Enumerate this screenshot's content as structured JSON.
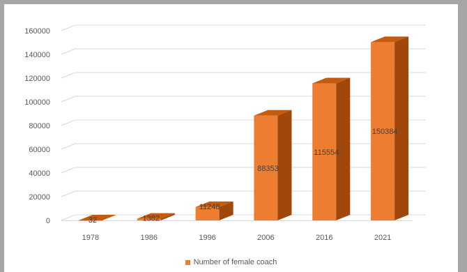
{
  "chart_data": {
    "type": "bar",
    "style": "3d-column",
    "categories": [
      "1978",
      "1986",
      "1996",
      "2006",
      "2016",
      "2021"
    ],
    "series": [
      {
        "name": "Number of female coach",
        "values": [
          32,
          1382,
          11248,
          88353,
          115554,
          150384
        ]
      }
    ],
    "ylim": [
      0,
      160000
    ],
    "yticks": [
      "0",
      "20000",
      "40000",
      "60000",
      "80000",
      "100000",
      "120000",
      "140000",
      "160000"
    ],
    "grid": true,
    "legend_position": "bottom",
    "data_labels": [
      "32",
      "1382",
      "11248",
      "88353",
      "115554",
      "150384"
    ],
    "colors": {
      "front": "#ed7d31",
      "top": "#c55a11",
      "side": "#a0470b"
    }
  }
}
